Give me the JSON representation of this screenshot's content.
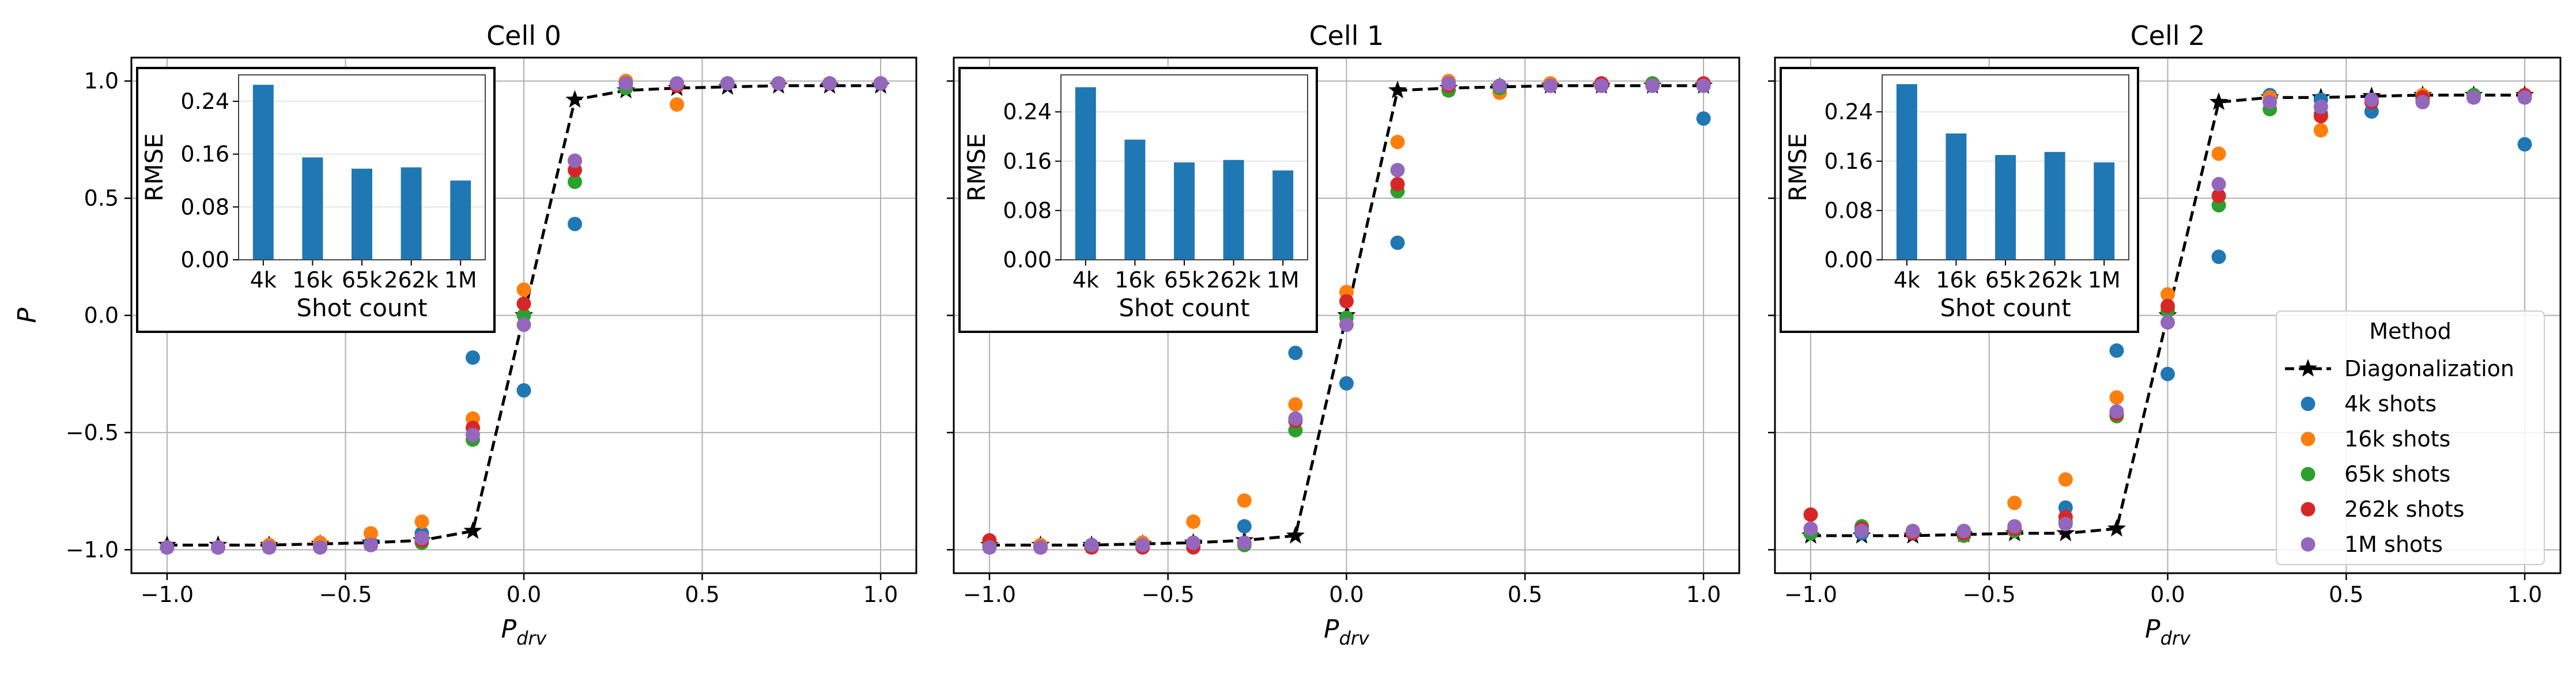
{
  "figure": {
    "ylabel": "P",
    "xlabel_main": "P",
    "xlabel_sub": "drv",
    "legend": {
      "title": "Method",
      "entries": [
        "Diagonalization",
        "4k shots",
        "16k shots",
        "65k shots",
        "262k shots",
        "1M shots"
      ]
    },
    "colors": {
      "diag": "#000000",
      "4k shots": "#1f77b4",
      "16k shots": "#ff7f0e",
      "65k shots": "#2ca02c",
      "262k shots": "#d62728",
      "1M shots": "#9467bd",
      "inset_bar": "#1f77b4",
      "grid": "#b0b0b0"
    }
  },
  "chart_data": [
    {
      "type": "scatter",
      "title": "Cell 0",
      "xlim": [
        -1.1,
        1.1
      ],
      "ylim": [
        -1.1,
        1.1
      ],
      "xticks": [
        -1.0,
        -0.5,
        0.0,
        0.5,
        1.0
      ],
      "yticks": [
        -1.0,
        -0.5,
        0.0,
        0.5,
        1.0
      ],
      "grid": true,
      "x": [
        -1.0,
        -0.857,
        -0.714,
        -0.571,
        -0.429,
        -0.286,
        -0.143,
        0.0,
        0.143,
        0.286,
        0.429,
        0.571,
        0.714,
        0.857,
        1.0
      ],
      "diagonalization": [
        -0.98,
        -0.98,
        -0.98,
        -0.975,
        -0.97,
        -0.96,
        -0.92,
        0.0,
        0.92,
        0.96,
        0.97,
        0.975,
        0.98,
        0.98,
        0.98
      ],
      "series": [
        {
          "name": "4k shots",
          "values": [
            -0.99,
            -0.99,
            -0.98,
            -0.98,
            -0.97,
            -0.93,
            -0.18,
            -0.32,
            0.39,
            1.0,
            0.99,
            0.99,
            0.99,
            0.99,
            0.99
          ]
        },
        {
          "name": "16k shots",
          "values": [
            -0.99,
            -0.99,
            -0.98,
            -0.97,
            -0.93,
            -0.88,
            -0.44,
            0.11,
            0.66,
            1.0,
            0.9,
            0.99,
            0.99,
            0.99,
            0.99
          ]
        },
        {
          "name": "65k shots",
          "values": [
            -0.99,
            -0.99,
            -0.99,
            -0.99,
            -0.98,
            -0.97,
            -0.53,
            0.0,
            0.57,
            0.97,
            0.98,
            0.99,
            0.99,
            0.99,
            0.99
          ]
        },
        {
          "name": "262k shots",
          "values": [
            -0.99,
            -0.99,
            -0.99,
            -0.99,
            -0.98,
            -0.96,
            -0.48,
            0.05,
            0.62,
            0.99,
            0.98,
            0.99,
            0.99,
            0.99,
            0.99
          ]
        },
        {
          "name": "1M shots",
          "values": [
            -0.99,
            -0.99,
            -0.99,
            -0.99,
            -0.98,
            -0.95,
            -0.51,
            -0.04,
            0.66,
            0.99,
            0.99,
            0.99,
            0.99,
            0.99,
            0.99
          ]
        }
      ],
      "inset": {
        "type": "bar",
        "categories": [
          "4k",
          "16k",
          "65k",
          "262k",
          "1M"
        ],
        "values": [
          0.265,
          0.155,
          0.138,
          0.14,
          0.12
        ],
        "ylim": [
          0,
          0.28
        ],
        "yticks": [
          0.0,
          0.08,
          0.16,
          0.24
        ],
        "ytick_labels": [
          "0.00",
          "0.08",
          "0.16",
          "0.24"
        ],
        "ylabel": "RMSE",
        "xlabel": "Shot count"
      }
    },
    {
      "type": "scatter",
      "title": "Cell 1",
      "xlim": [
        -1.1,
        1.1
      ],
      "ylim": [
        -1.1,
        1.1
      ],
      "xticks": [
        -1.0,
        -0.5,
        0.0,
        0.5,
        1.0
      ],
      "yticks": [
        -1.0,
        -0.5,
        0.0,
        0.5,
        1.0
      ],
      "grid": true,
      "x": [
        -1.0,
        -0.857,
        -0.714,
        -0.571,
        -0.429,
        -0.286,
        -0.143,
        0.0,
        0.143,
        0.286,
        0.429,
        0.571,
        0.714,
        0.857,
        1.0
      ],
      "diagonalization": [
        -0.98,
        -0.98,
        -0.98,
        -0.975,
        -0.97,
        -0.96,
        -0.94,
        0.0,
        0.96,
        0.97,
        0.975,
        0.98,
        0.98,
        0.98,
        0.98
      ],
      "series": [
        {
          "name": "4k shots",
          "values": [
            -0.99,
            -0.99,
            -0.98,
            -0.98,
            -0.97,
            -0.9,
            -0.16,
            -0.29,
            0.31,
            0.99,
            0.97,
            0.99,
            0.99,
            0.99,
            0.84
          ]
        },
        {
          "name": "16k shots",
          "values": [
            -0.97,
            -0.98,
            -0.98,
            -0.97,
            -0.88,
            -0.79,
            -0.38,
            0.1,
            0.74,
            1.0,
            0.95,
            0.99,
            0.99,
            0.99,
            0.99
          ]
        },
        {
          "name": "65k shots",
          "values": [
            -0.98,
            -0.99,
            -0.99,
            -0.99,
            -0.98,
            -0.98,
            -0.49,
            -0.01,
            0.53,
            0.96,
            0.97,
            0.98,
            0.98,
            0.99,
            0.98
          ]
        },
        {
          "name": "262k shots",
          "values": [
            -0.96,
            -0.99,
            -0.99,
            -0.99,
            -0.99,
            -0.97,
            -0.45,
            0.06,
            0.56,
            0.98,
            0.98,
            0.98,
            0.99,
            0.98,
            0.99
          ]
        },
        {
          "name": "1M shots",
          "values": [
            -0.99,
            -0.99,
            -0.98,
            -0.98,
            -0.97,
            -0.97,
            -0.44,
            -0.04,
            0.62,
            0.99,
            0.98,
            0.98,
            0.98,
            0.98,
            0.98
          ]
        }
      ],
      "inset": {
        "type": "bar",
        "categories": [
          "4k",
          "16k",
          "65k",
          "262k",
          "1M"
        ],
        "values": [
          0.28,
          0.195,
          0.158,
          0.162,
          0.145
        ],
        "ylim": [
          0,
          0.3
        ],
        "yticks": [
          0.0,
          0.08,
          0.16,
          0.24
        ],
        "ytick_labels": [
          "0.00",
          "0.08",
          "0.16",
          "0.24"
        ],
        "ylabel": "RMSE",
        "xlabel": "Shot count"
      }
    },
    {
      "type": "scatter",
      "title": "Cell 2",
      "xlim": [
        -1.1,
        1.1
      ],
      "ylim": [
        -1.1,
        1.1
      ],
      "xticks": [
        -1.0,
        -0.5,
        0.0,
        0.5,
        1.0
      ],
      "yticks": [
        -1.0,
        -0.5,
        0.0,
        0.5,
        1.0
      ],
      "grid": true,
      "x": [
        -1.0,
        -0.857,
        -0.714,
        -0.571,
        -0.429,
        -0.286,
        -0.143,
        0.0,
        0.143,
        0.286,
        0.429,
        0.571,
        0.714,
        0.857,
        1.0
      ],
      "diagonalization": [
        -0.94,
        -0.94,
        -0.94,
        -0.935,
        -0.93,
        -0.93,
        -0.91,
        0.0,
        0.91,
        0.93,
        0.93,
        0.935,
        0.94,
        0.94,
        0.94
      ],
      "series": [
        {
          "name": "4k shots",
          "values": [
            -0.93,
            -0.93,
            -0.92,
            -0.92,
            -0.92,
            -0.82,
            -0.15,
            -0.25,
            0.25,
            0.94,
            0.92,
            0.87,
            0.93,
            0.94,
            0.73
          ]
        },
        {
          "name": "16k shots",
          "values": [
            -0.93,
            -0.91,
            -0.92,
            -0.92,
            -0.8,
            -0.7,
            -0.35,
            0.09,
            0.69,
            0.93,
            0.79,
            0.91,
            0.94,
            0.93,
            0.94
          ]
        },
        {
          "name": "65k shots",
          "values": [
            -0.93,
            -0.9,
            -0.93,
            -0.94,
            -0.92,
            -0.88,
            -0.43,
            0.02,
            0.47,
            0.88,
            0.86,
            0.91,
            0.92,
            0.94,
            0.93
          ]
        },
        {
          "name": "262k shots",
          "values": [
            -0.85,
            -0.91,
            -0.93,
            -0.93,
            -0.91,
            -0.86,
            -0.42,
            0.04,
            0.51,
            0.91,
            0.85,
            0.91,
            0.93,
            0.93,
            0.94
          ]
        },
        {
          "name": "1M shots",
          "values": [
            -0.91,
            -0.92,
            -0.92,
            -0.92,
            -0.9,
            -0.89,
            -0.41,
            -0.03,
            0.56,
            0.91,
            0.89,
            0.92,
            0.91,
            0.93,
            0.93
          ]
        }
      ],
      "inset": {
        "type": "bar",
        "categories": [
          "4k",
          "16k",
          "65k",
          "262k",
          "1M"
        ],
        "values": [
          0.285,
          0.205,
          0.17,
          0.175,
          0.158
        ],
        "ylim": [
          0,
          0.3
        ],
        "yticks": [
          0.0,
          0.08,
          0.16,
          0.24
        ],
        "ytick_labels": [
          "0.00",
          "0.08",
          "0.16",
          "0.24"
        ],
        "ylabel": "RMSE",
        "xlabel": "Shot count"
      }
    }
  ]
}
